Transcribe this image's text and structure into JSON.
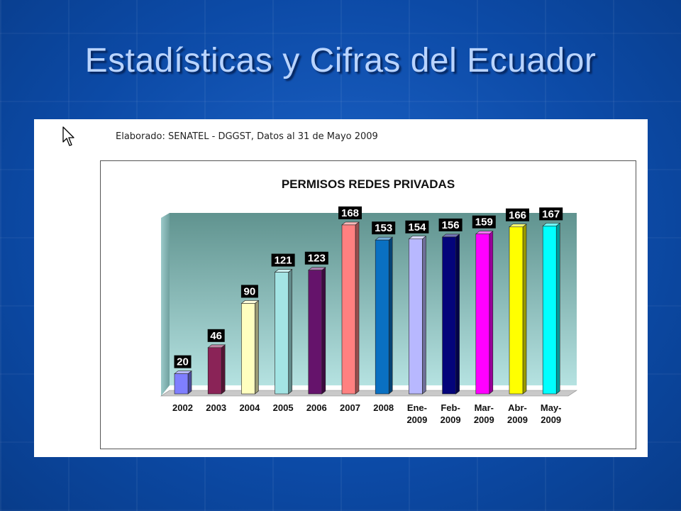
{
  "slide": {
    "title": "Estadísticas y Cifras del Ecuador"
  },
  "panel": {
    "source_text": "Elaborado: SENATEL - DGGST, Datos al 31 de Mayo  2009"
  },
  "colors": {
    "background": "#0c4aa6",
    "title": "#b9d4ff",
    "plot_top": "#60938f",
    "plot_bottom": "#b5e2e1"
  },
  "chart_data": {
    "type": "bar",
    "title": "PERMISOS REDES PRIVADAS",
    "categories": [
      [
        "2002"
      ],
      [
        "2003"
      ],
      [
        "2004"
      ],
      [
        "2005"
      ],
      [
        "2006"
      ],
      [
        "2007"
      ],
      [
        "2008"
      ],
      [
        "Ene-",
        "2009"
      ],
      [
        "Feb-",
        "2009"
      ],
      [
        "Mar-",
        "2009"
      ],
      [
        "Abr-",
        "2009"
      ],
      [
        "May-",
        "2009"
      ]
    ],
    "values": [
      20,
      46,
      90,
      121,
      123,
      168,
      153,
      154,
      156,
      159,
      166,
      167
    ],
    "bar_colors": [
      "#7f7fff",
      "#8a2357",
      "#ffffbf",
      "#a3e4e4",
      "#65136b",
      "#ff8080",
      "#0a70c2",
      "#b8b8ff",
      "#04047a",
      "#ff00ff",
      "#ffff00",
      "#00ffff"
    ],
    "ylim": [
      0,
      175
    ],
    "grid": false,
    "legend": "none",
    "data_labels": true,
    "xlabel": "",
    "ylabel": ""
  }
}
